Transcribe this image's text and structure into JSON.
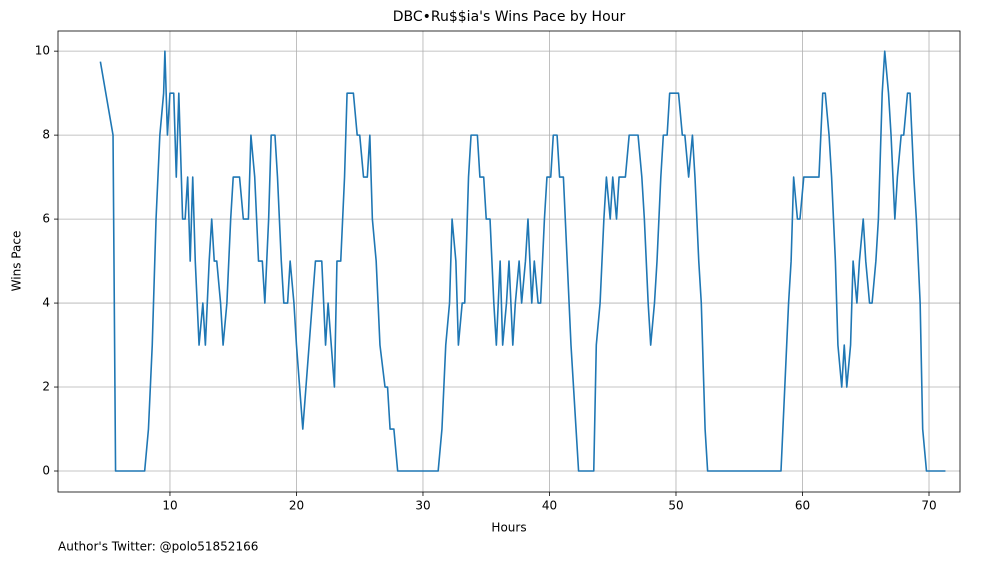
{
  "chart_data": {
    "type": "line",
    "title": "DBC•Ru$$ia's Wins Pace by Hour",
    "x_label": "Hours",
    "y_label": "Wins Pace",
    "footnote": "Author's Twitter: @polo51852166",
    "x": [
      4.5,
      5.5,
      5.7,
      8.0,
      8.3,
      8.6,
      8.9,
      9.2,
      9.5,
      9.6,
      9.8,
      10.0,
      10.3,
      10.5,
      10.7,
      11.0,
      11.2,
      11.4,
      11.6,
      11.8,
      12.0,
      12.3,
      12.6,
      12.8,
      13.1,
      13.3,
      13.5,
      13.7,
      14.0,
      14.2,
      14.5,
      14.8,
      15.0,
      15.5,
      15.8,
      16.2,
      16.4,
      16.7,
      17.0,
      17.3,
      17.5,
      17.8,
      18.0,
      18.3,
      18.5,
      18.8,
      19.0,
      19.3,
      19.5,
      19.8,
      20.0,
      20.5,
      21.0,
      21.5,
      22.0,
      22.3,
      22.5,
      23.0,
      23.2,
      23.5,
      23.8,
      24.0,
      24.5,
      24.8,
      25.0,
      25.3,
      25.6,
      25.8,
      26.0,
      26.3,
      26.6,
      27.0,
      27.2,
      27.4,
      27.7,
      28.0,
      31.2,
      31.5,
      31.8,
      32.1,
      32.3,
      32.6,
      32.8,
      33.1,
      33.3,
      33.6,
      33.8,
      34.3,
      34.5,
      34.8,
      35.0,
      35.3,
      35.6,
      35.8,
      36.1,
      36.3,
      36.6,
      36.8,
      37.1,
      37.3,
      37.6,
      37.8,
      38.1,
      38.3,
      38.6,
      38.8,
      39.1,
      39.3,
      39.6,
      39.8,
      40.1,
      40.3,
      40.6,
      40.8,
      41.1,
      41.4,
      41.7,
      41.9,
      42.1,
      42.3,
      43.5,
      43.7,
      44.0,
      44.3,
      44.5,
      44.8,
      45.0,
      45.3,
      45.5,
      46.0,
      46.3,
      47.0,
      47.3,
      47.5,
      47.8,
      48.0,
      48.3,
      48.5,
      48.8,
      49.0,
      49.3,
      49.5,
      50.2,
      50.5,
      50.7,
      51.0,
      51.3,
      51.5,
      51.8,
      52.0,
      52.3,
      52.5,
      58.3,
      58.6,
      58.9,
      59.1,
      59.3,
      59.6,
      59.8,
      60.1,
      61.3,
      61.6,
      61.8,
      62.1,
      62.3,
      62.6,
      62.8,
      63.1,
      63.3,
      63.5,
      63.8,
      64.0,
      64.3,
      64.5,
      64.8,
      65.0,
      65.3,
      65.5,
      65.8,
      66.0,
      66.3,
      66.5,
      66.8,
      67.0,
      67.3,
      67.5,
      67.8,
      68.0,
      68.3,
      68.5,
      68.8,
      69.0,
      69.3,
      69.5,
      69.8,
      71.3
    ],
    "values": [
      9.75,
      8,
      0,
      0,
      1,
      3,
      6,
      8,
      9,
      10,
      8,
      9,
      9,
      7,
      9,
      6,
      6,
      7,
      5,
      7,
      5,
      3,
      4,
      3,
      5,
      6,
      5,
      5,
      4,
      3,
      4,
      6,
      7,
      7,
      6,
      6,
      8,
      7,
      5,
      5,
      4,
      6,
      8,
      8,
      7,
      5,
      4,
      4,
      5,
      4,
      3,
      1,
      3,
      5,
      5,
      3,
      4,
      2,
      5,
      5,
      7,
      9,
      9,
      8,
      8,
      7,
      7,
      8,
      6,
      5,
      3,
      2,
      2,
      1,
      1,
      0,
      0,
      1,
      3,
      4,
      6,
      5,
      3,
      4,
      4,
      7,
      8,
      8,
      7,
      7,
      6,
      6,
      4,
      3,
      5,
      3,
      4,
      5,
      3,
      4,
      5,
      4,
      5,
      6,
      4,
      5,
      4,
      4,
      6,
      7,
      7,
      8,
      8,
      7,
      7,
      5,
      3,
      2,
      1,
      0,
      0,
      3,
      4,
      6,
      7,
      6,
      7,
      6,
      7,
      7,
      8,
      8,
      7,
      6,
      4,
      3,
      4,
      5,
      7,
      8,
      8,
      9,
      9,
      8,
      8,
      7,
      8,
      7,
      5,
      4,
      1,
      0,
      0,
      2,
      4,
      5,
      7,
      6,
      6,
      7,
      7,
      9,
      9,
      8,
      7,
      5,
      3,
      2,
      3,
      2,
      3,
      5,
      4,
      5,
      6,
      5,
      4,
      4,
      5,
      6,
      9,
      10,
      9,
      8,
      6,
      7,
      8,
      8,
      9,
      9,
      7,
      6,
      4,
      1,
      0,
      0
    ],
    "color": "#1f77b4",
    "xlim": [
      1.15,
      72.45
    ],
    "xticks": [
      10,
      20,
      30,
      40,
      50,
      60,
      70
    ],
    "ylim": [
      -0.5,
      10.48
    ],
    "yticks": [
      0,
      2,
      4,
      6,
      8,
      10
    ],
    "grid": true
  }
}
